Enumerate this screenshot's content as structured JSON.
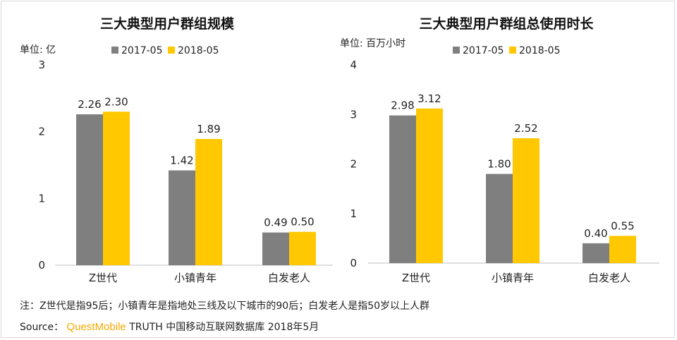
{
  "colors": {
    "s2017": "#7f7f7f",
    "s2018": "#ffc800",
    "axis": "#bfbfbf"
  },
  "legend": [
    "2017-05",
    "2018-05"
  ],
  "chart_data": [
    {
      "type": "bar",
      "title": "三大典型用户群组规模",
      "unit": "单位: 亿",
      "categories": [
        "Z世代",
        "小镇青年",
        "白发老人"
      ],
      "series": [
        {
          "name": "2017-05",
          "values": [
            2.26,
            1.42,
            0.49
          ],
          "labels": [
            "2.26",
            "1.42",
            "0.49"
          ]
        },
        {
          "name": "2018-05",
          "values": [
            2.3,
            1.89,
            0.5
          ],
          "labels": [
            "2.30",
            "1.89",
            "0.50"
          ]
        }
      ],
      "yticks": [
        "0",
        "1",
        "2",
        "3"
      ],
      "ylim": [
        0,
        3
      ]
    },
    {
      "type": "bar",
      "title": "三大典型用户群组总使用时长",
      "unit": "单位: 百万小时",
      "categories": [
        "Z世代",
        "小镇青年",
        "白发老人"
      ],
      "series": [
        {
          "name": "2017-05",
          "values": [
            2.98,
            1.8,
            0.4
          ],
          "labels": [
            "2.98",
            "1.80",
            "0.40"
          ]
        },
        {
          "name": "2018-05",
          "values": [
            3.12,
            2.52,
            0.55
          ],
          "labels": [
            "3.12",
            "2.52",
            "0.55"
          ]
        }
      ],
      "yticks": [
        "0",
        "1",
        "2",
        "3",
        "4"
      ],
      "ylim": [
        0,
        4
      ]
    }
  ],
  "footer": {
    "note": "注：Z世代是指95后；小镇青年是指地处三线及以下城市的90后；白发老人是指50岁以上人群",
    "source_prefix": "Source：",
    "source_brand": "QuestMobile",
    "source_suffix": "TRUTH 中国移动互联网数据库 2018年5月"
  }
}
